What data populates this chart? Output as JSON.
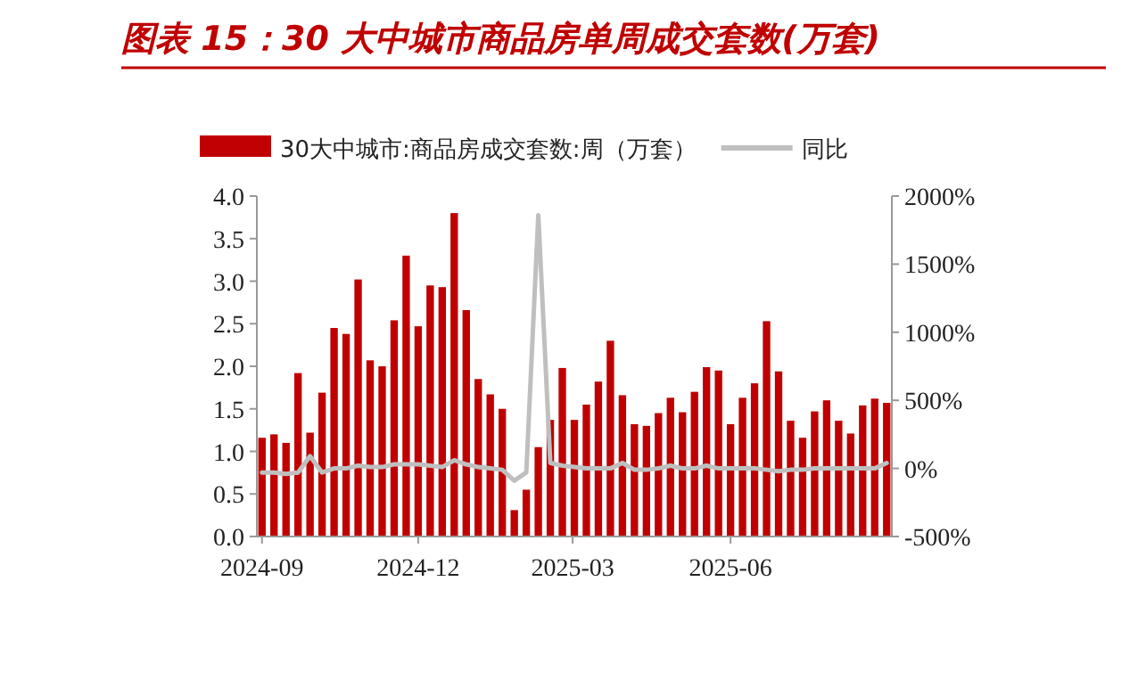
{
  "chart_data": {
    "type": "bar",
    "title": "图表 15：30 大中城市商品房单周成交套数(万套)",
    "x": [
      "2024-09-01",
      "2024-09-08",
      "2024-09-15",
      "2024-09-22",
      "2024-09-29",
      "2024-10-06",
      "2024-10-13",
      "2024-10-20",
      "2024-10-27",
      "2024-11-03",
      "2024-11-10",
      "2024-11-17",
      "2024-11-24",
      "2024-12-01",
      "2024-12-08",
      "2024-12-15",
      "2024-12-22",
      "2024-12-29",
      "2025-01-05",
      "2025-01-12",
      "2025-01-19",
      "2025-01-26",
      "2025-02-02",
      "2025-02-09",
      "2025-02-16",
      "2025-02-23",
      "2025-03-02",
      "2025-03-09",
      "2025-03-16",
      "2025-03-23",
      "2025-03-30",
      "2025-04-06",
      "2025-04-13",
      "2025-04-20",
      "2025-04-27",
      "2025-05-04",
      "2025-05-11",
      "2025-05-18",
      "2025-05-25",
      "2025-06-01",
      "2025-06-08",
      "2025-06-15",
      "2025-06-22",
      "2025-06-29",
      "2025-07-06",
      "2025-07-13",
      "2025-07-20",
      "2025-07-27",
      "2025-08-03",
      "2025-08-10",
      "2025-08-17",
      "2025-08-24",
      "2025-08-31"
    ],
    "series": [
      {
        "name": "30大中城市:商品房成交套数:周（万套）",
        "color": "#c00000",
        "values": [
          1.16,
          1.2,
          1.1,
          1.92,
          1.22,
          1.69,
          2.45,
          2.38,
          3.02,
          2.07,
          2.0,
          2.54,
          3.3,
          2.47,
          2.95,
          2.93,
          3.8,
          2.66,
          1.85,
          1.67,
          1.5,
          0.31,
          0.55,
          1.05,
          1.37,
          1.98,
          1.37,
          1.55,
          1.82,
          2.3,
          1.66,
          1.32,
          1.3,
          1.45,
          1.63,
          1.46,
          1.7,
          1.99,
          1.95,
          1.32,
          1.63,
          1.8,
          2.53,
          1.94,
          1.36,
          1.16,
          1.47,
          1.6,
          1.36,
          1.21,
          1.54,
          1.62,
          1.57
        ]
      },
      {
        "name": "同比",
        "type": "line",
        "axis": "y2",
        "color": "#bfbfbf",
        "values": [
          -30,
          -30,
          -40,
          -30,
          90,
          -30,
          0,
          0,
          20,
          10,
          10,
          30,
          30,
          30,
          20,
          10,
          60,
          30,
          10,
          0,
          -10,
          -90,
          -30,
          1860,
          40,
          20,
          10,
          0,
          0,
          0,
          40,
          -10,
          -10,
          0,
          20,
          0,
          0,
          20,
          0,
          0,
          0,
          0,
          -10,
          -20,
          -10,
          -10,
          0,
          0,
          0,
          0,
          0,
          0,
          40
        ]
      }
    ],
    "xlim": [
      "2024-08-29",
      "2025-09-03"
    ],
    "xticks": [
      {
        "value": "2024-09-01",
        "label": "2024-09"
      },
      {
        "value": "2024-12-01",
        "label": "2024-12"
      },
      {
        "value": "2025-03-01",
        "label": "2025-03"
      },
      {
        "value": "2025-06-01",
        "label": "2025-06"
      }
    ],
    "ylim": [
      0,
      4
    ],
    "yticks": [
      {
        "value": 0,
        "label": "0.0"
      },
      {
        "value": 0.5,
        "label": "0.5"
      },
      {
        "value": 1,
        "label": "1.0"
      },
      {
        "value": 1.5,
        "label": "1.5"
      },
      {
        "value": 2,
        "label": "2.0"
      },
      {
        "value": 2.5,
        "label": "2.5"
      },
      {
        "value": 3,
        "label": "3.0"
      },
      {
        "value": 3.5,
        "label": "3.5"
      },
      {
        "value": 4,
        "label": "4.0"
      }
    ],
    "y2lim": [
      -500,
      2000
    ],
    "y2ticks": [
      {
        "value": -500,
        "label": "-500%"
      },
      {
        "value": 0,
        "label": "0%"
      },
      {
        "value": 500,
        "label": "500%"
      },
      {
        "value": 1000,
        "label": "1000%"
      },
      {
        "value": 1500,
        "label": "1500%"
      },
      {
        "value": 2000,
        "label": "2000%"
      }
    ],
    "legend": "top",
    "grid": false
  }
}
